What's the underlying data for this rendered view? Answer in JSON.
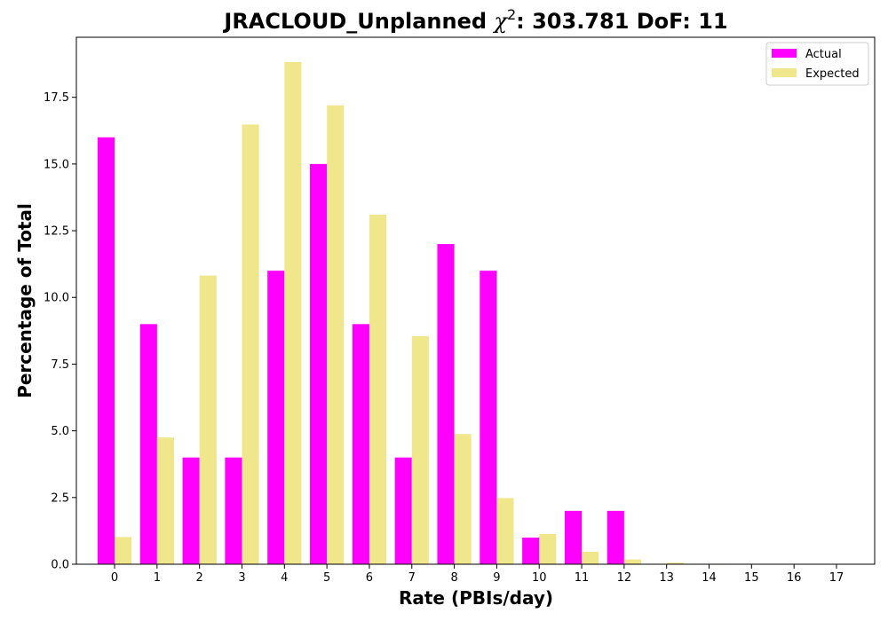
{
  "chart_data": {
    "type": "bar",
    "title_prefix": "JRACLOUD_Unplanned ",
    "title_chi": "χ",
    "title_sup": "2",
    "title_suffix": ": 303.781 DoF: 11",
    "xlabel": "Rate (PBIs/day)",
    "ylabel": "Percentage of Total",
    "categories": [
      "0",
      "1",
      "2",
      "3",
      "4",
      "5",
      "6",
      "7",
      "8",
      "9",
      "10",
      "11",
      "12",
      "13",
      "14",
      "15",
      "16",
      "17"
    ],
    "series": [
      {
        "name": "Actual",
        "color": "#ff00ff",
        "values": [
          16,
          9,
          4,
          4,
          11,
          15,
          9,
          4,
          12,
          11,
          1,
          2,
          2,
          0,
          0,
          0,
          0,
          0
        ]
      },
      {
        "name": "Expected",
        "color": "#f0e68c",
        "values": [
          1.02,
          4.75,
          10.82,
          16.48,
          18.82,
          17.2,
          13.1,
          8.55,
          4.88,
          2.48,
          1.13,
          0.47,
          0.18,
          0.06,
          0.02,
          0.01,
          0.0,
          0.0
        ]
      }
    ],
    "yticks": [
      "0.0",
      "2.5",
      "5.0",
      "7.5",
      "10.0",
      "12.5",
      "15.0",
      "17.5"
    ],
    "ylim": [
      0,
      19.75
    ],
    "xlim": [
      -0.9,
      17.9
    ],
    "grid": false,
    "legend_position": "top-right"
  }
}
